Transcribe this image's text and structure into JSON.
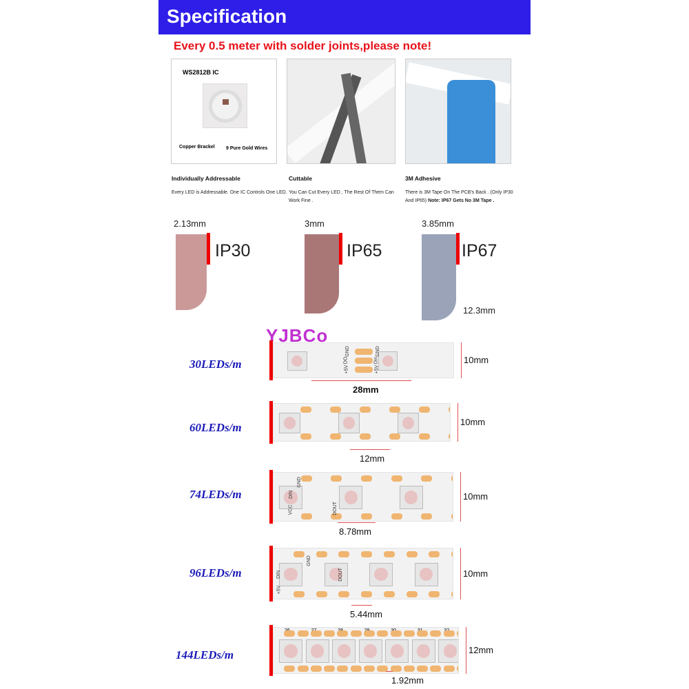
{
  "header": {
    "title": "Specification",
    "color": "#2e1ee8"
  },
  "note": "Every 0.5 meter with solder joints,please note!",
  "panels": [
    {
      "labels": {
        "ic": "WS2812B IC",
        "bracket": "Copper Brackel",
        "wires": "9 Pure Gold Wires"
      },
      "title": "Individually Addressable",
      "body": "Every LED is Addressable. One IC Controls One LED."
    },
    {
      "title": "Cuttable",
      "body": "You Can Cut Every LED , The Rest Of Them Can Work Fine ."
    },
    {
      "title": "3M Adhesive",
      "body": "There is 3M Tape On The PCB's Back . (Only IP30 And IP65)",
      "body_bold": "Note: IP67 Gets No 3M Tape ."
    }
  ],
  "ip": [
    {
      "thickness": "2.13mm",
      "rating": "IP30"
    },
    {
      "thickness": "3mm",
      "rating": "IP65"
    },
    {
      "thickness": "3.85mm",
      "rating": "IP67",
      "height": "12.3mm"
    }
  ],
  "logo": "YJBCo",
  "strips": [
    {
      "label": "30LEDs/m",
      "width": "10mm",
      "pitch": "28mm",
      "pad_labels": [
        "GND",
        "DO",
        "+5V",
        "GND",
        "Din",
        "+5V"
      ]
    },
    {
      "label": "60LEDs/m",
      "width": "10mm",
      "pitch": "12mm"
    },
    {
      "label": "74LEDs/m",
      "width": "10mm",
      "pitch": "8.78mm",
      "pad_labels": [
        "DIN",
        "GND",
        "VCC",
        "DOUT"
      ]
    },
    {
      "label": "96LEDs/m",
      "width": "10mm",
      "pitch": "5.44mm",
      "pad_labels": [
        "GND",
        "DIN",
        "DOUT",
        "+5V"
      ]
    },
    {
      "label": "144LEDs/m",
      "width": "12mm",
      "pitch": "1.92mm",
      "led_numbers": [
        "26",
        "27",
        "28",
        "29",
        "30",
        "31",
        "32"
      ]
    }
  ]
}
